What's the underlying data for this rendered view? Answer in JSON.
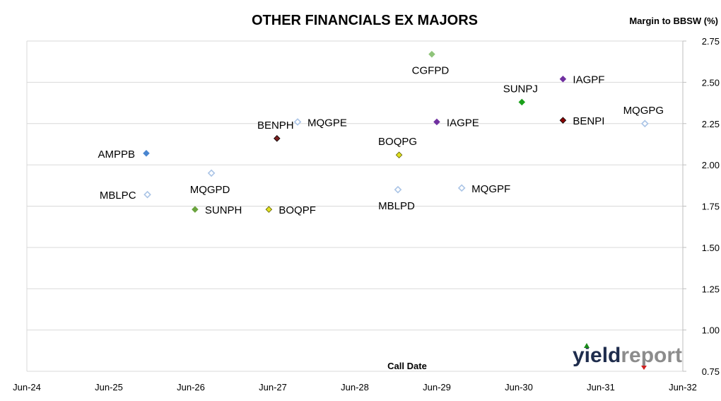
{
  "chart_data": {
    "type": "scatter",
    "title": "OTHER FINANCIALS EX MAJORS",
    "ylabel": "Margin to BBSW (%)",
    "xlabel": "Call Date",
    "x_ticks": [
      "Jun-24",
      "Jun-25",
      "Jun-26",
      "Jun-27",
      "Jun-28",
      "Jun-29",
      "Jun-30",
      "Jun-31",
      "Jun-32"
    ],
    "xlim": [
      "2024-06",
      "2032-06"
    ],
    "y_ticks": [
      "0.75",
      "1.00",
      "1.25",
      "1.50",
      "1.75",
      "2.00",
      "2.25",
      "2.50",
      "2.75"
    ],
    "ylim": [
      0.75,
      2.75
    ],
    "grid": "horizontal",
    "points": [
      {
        "label": "AMPPB",
        "x": "2025-11-15",
        "y": 2.07,
        "color": "#4a86d0",
        "filled": true,
        "label_pos": "left"
      },
      {
        "label": "MBLPC",
        "x": "2025-11-20",
        "y": 1.82,
        "color": "#aac4e6",
        "filled": false,
        "label_pos": "left"
      },
      {
        "label": "MQGPD",
        "x": "2026-09-01",
        "y": 1.95,
        "color": "#aac4e6",
        "filled": false,
        "label_pos": "below"
      },
      {
        "label": "SUNPH",
        "x": "2026-06-20",
        "y": 1.73,
        "color": "#6aa33e",
        "filled": true,
        "label_pos": "right"
      },
      {
        "label": "BOQPF",
        "x": "2027-05-15",
        "y": 1.73,
        "color": "#e0e020",
        "filled": true,
        "label_pos": "right"
      },
      {
        "label": "BENPH",
        "x": "2027-06-20",
        "y": 2.16,
        "color": "#7a1f1f",
        "filled": true,
        "label_pos": "above"
      },
      {
        "label": "MQGPE",
        "x": "2027-09-20",
        "y": 2.26,
        "color": "#aac4e6",
        "filled": false,
        "label_pos": "right"
      },
      {
        "label": "MBLPD",
        "x": "2028-12-10",
        "y": 1.85,
        "color": "#aac4e6",
        "filled": false,
        "label_pos": "below"
      },
      {
        "label": "BOQPG",
        "x": "2028-12-15",
        "y": 2.06,
        "color": "#e0e020",
        "filled": true,
        "label_pos": "above"
      },
      {
        "label": "CGFPD",
        "x": "2029-05-10",
        "y": 2.67,
        "color": "#8fc47a",
        "filled": true,
        "label_pos": "below"
      },
      {
        "label": "IAGPE",
        "x": "2029-06-01",
        "y": 2.26,
        "color": "#7030a0",
        "filled": true,
        "label_pos": "right"
      },
      {
        "label": "MQGPF",
        "x": "2029-09-20",
        "y": 1.86,
        "color": "#aac4e6",
        "filled": false,
        "label_pos": "right"
      },
      {
        "label": "SUNPJ",
        "x": "2030-06-15",
        "y": 2.38,
        "color": "#1aa01a",
        "filled": true,
        "label_pos": "above"
      },
      {
        "label": "IAGPF",
        "x": "2030-12-15",
        "y": 2.52,
        "color": "#7030a0",
        "filled": true,
        "label_pos": "right"
      },
      {
        "label": "BENPI",
        "x": "2030-12-15",
        "y": 2.27,
        "color": "#8b0000",
        "filled": true,
        "label_pos": "right"
      },
      {
        "label": "MQGPG",
        "x": "2031-12-15",
        "y": 2.25,
        "color": "#aac4e6",
        "filled": false,
        "label_pos": "above"
      }
    ]
  },
  "logo": {
    "text_yield": "yield",
    "text_report": "report",
    "color_yield": "#1f2d4d",
    "color_report": "#8c8c8c"
  }
}
